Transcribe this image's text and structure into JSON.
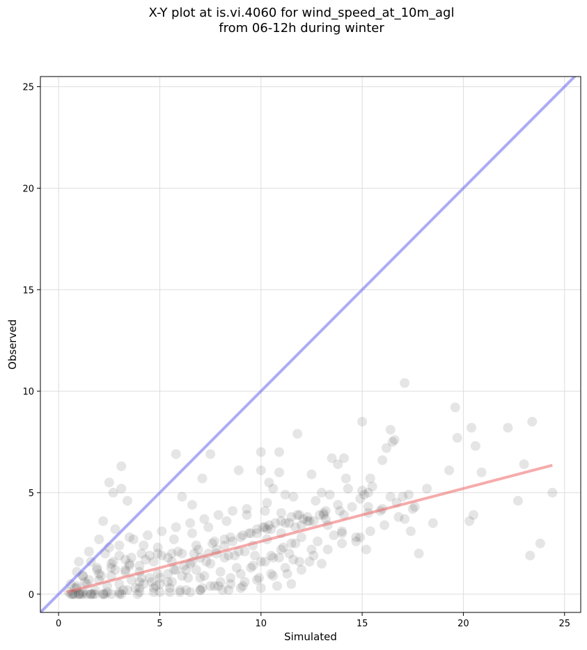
{
  "chart_data": {
    "type": "scatter",
    "title_line1": "X-Y plot at is.vi.4060 for wind_speed_at_10m_agl",
    "title_line2": "from 06-12h during winter",
    "xlabel": "Simulated",
    "ylabel": "Observed",
    "xlim": [
      -0.9,
      25.8
    ],
    "ylim": [
      -0.9,
      25.5
    ],
    "xticks": [
      0,
      5,
      10,
      15,
      20,
      25
    ],
    "yticks": [
      0,
      5,
      10,
      15,
      20,
      25
    ],
    "grid": true,
    "colors": {
      "points": "#000000",
      "one_to_one": "#6666ee",
      "fit": "#ee6666"
    },
    "one_to_one_line": {
      "x": [
        -0.9,
        25.8
      ],
      "y": [
        -0.9,
        25.8
      ]
    },
    "fit_line": {
      "x": [
        0.4,
        24.4
      ],
      "y": [
        0.1,
        6.35
      ]
    },
    "points": {
      "x": [
        17.1,
        19.6,
        16.4,
        15.0,
        19.7,
        22.2,
        20.4,
        23.4,
        11.8,
        16.5,
        16.6,
        16.2,
        10.0,
        10.9,
        20.6,
        5.8,
        7.5,
        3.1,
        15.4,
        13.5,
        14.1,
        14.2,
        16.0,
        23.0,
        12.5,
        10.0,
        13.0,
        8.9,
        2.5,
        3.1,
        6.1,
        7.1,
        10.4,
        10.9,
        17.3,
        16.4,
        15.5,
        19.3,
        20.9,
        13.8,
        24.4,
        15.3,
        22.7,
        10.3,
        6.6,
        2.7,
        3.4,
        14.3,
        15.0,
        18.2,
        15.1,
        18.5,
        20.3,
        20.5,
        17.0,
        17.5,
        11.2,
        10.6,
        13.4,
        11.6,
        14.9,
        12.7,
        13.8,
        16.7,
        17.6,
        23.8,
        15.9,
        15.3,
        16.0,
        15.3,
        17.1,
        17.4,
        14.1,
        13.2,
        12.3,
        11.4,
        10.5,
        9.8,
        9.1,
        8.2,
        7.6,
        6.9,
        6.1,
        5.4,
        4.7,
        4.0,
        3.3,
        2.6,
        2.0,
        1.4,
        0.9,
        0.5,
        17.8,
        23.3,
        12.0,
        10.2,
        14.0,
        14.9,
        13.6,
        12.8,
        11.7,
        11.1,
        9.2,
        8.4,
        7.3,
        6.5,
        5.7,
        4.9,
        4.1,
        3.6,
        3.0,
        2.4,
        1.8,
        1.2,
        0.8,
        13.2,
        12.9,
        12.3,
        11.9,
        11.5,
        11.0,
        10.7,
        10.4,
        10.1,
        9.8,
        9.5,
        9.0,
        8.6,
        8.2,
        7.8,
        7.4,
        7.0,
        6.6,
        6.2,
        5.8,
        5.4,
        5.0,
        4.6,
        4.2,
        3.8,
        3.4,
        3.0,
        2.6,
        2.2,
        1.8,
        1.4,
        1.0,
        0.7,
        12.5,
        11.4,
        10.9,
        10.2,
        9.6,
        8.8,
        8.0,
        7.2,
        6.4,
        5.6,
        4.8,
        4.0,
        3.2,
        2.4,
        1.6,
        1.1,
        0.6,
        14.5,
        13.9,
        13.1,
        12.1,
        11.2,
        10.3,
        9.4,
        8.5,
        7.7,
        6.8,
        5.9,
        5.1,
        4.3,
        3.5,
        2.8,
        2.1,
        1.5,
        0.9,
        12.0,
        11.3,
        10.6,
        9.9,
        9.2,
        8.5,
        7.9,
        7.1,
        6.3,
        5.5,
        4.7,
        3.9,
        3.1,
        2.3,
        1.7,
        1.2,
        0.7,
        15.2,
        14.7,
        14.0,
        13.3,
        12.6,
        11.8,
        11.0,
        10.2,
        9.3,
        8.3,
        7.4,
        6.6,
        5.7,
        4.9,
        4.1,
        3.3,
        2.6,
        2.0,
        1.3,
        0.8,
        11.5,
        10.8,
        10.0,
        9.0,
        8.1,
        7.0,
        6.0,
        5.0,
        4.0,
        3.0,
        2.2,
        1.6,
        1.0,
        13.0,
        12.4,
        11.6,
        10.6,
        9.7,
        8.7,
        7.8,
        6.7,
        5.6,
        4.5,
        3.6,
        2.7,
        1.9,
        1.2,
        0.6,
        9.3,
        8.6,
        7.9,
        7.2,
        6.5,
        5.8,
        5.1,
        4.4,
        3.7,
        3.0,
        2.3,
        1.6,
        0.9,
        2.2,
        2.8,
        3.5,
        4.2,
        4.9,
        5.6,
        6.3,
        7.0,
        7.7,
        8.4,
        9.1,
        9.8,
        10.5,
        11.2,
        11.9,
        12.6,
        13.3,
        14.0,
        14.7,
        15.4,
        16.1,
        16.8,
        1.0,
        1.5,
        2.0,
        2.5,
        3.0,
        3.5,
        4.0,
        4.5,
        5.0,
        5.5,
        6.0,
        6.5,
        7.0,
        7.5,
        8.0,
        8.5,
        9.0,
        9.5,
        10.0,
        10.5,
        11.0,
        11.5,
        12.0,
        1.2,
        1.9,
        2.6,
        3.3,
        4.0,
        4.7,
        5.4,
        6.1,
        6.8,
        7.5,
        8.2,
        8.9,
        9.6,
        10.3,
        11.0,
        11.7,
        12.4,
        13.1
      ],
      "y": [
        10.4,
        9.2,
        8.1,
        8.5,
        7.7,
        8.2,
        8.2,
        8.5,
        7.9,
        7.5,
        7.6,
        7.2,
        7.0,
        7.0,
        7.3,
        6.9,
        6.9,
        6.3,
        5.7,
        6.7,
        6.7,
        5.7,
        6.6,
        6.4,
        5.9,
        6.1,
        5.0,
        6.1,
        5.5,
        5.2,
        4.8,
        5.7,
        5.5,
        6.0,
        4.9,
        4.8,
        5.3,
        6.1,
        6.0,
        6.4,
        5.0,
        5.0,
        4.6,
        4.5,
        4.4,
        5.0,
        4.6,
        5.2,
        5.1,
        5.2,
        4.9,
        3.5,
        3.6,
        3.9,
        4.8,
        4.2,
        4.9,
        5.2,
        4.9,
        4.8,
        4.7,
        4.6,
        4.4,
        4.5,
        4.3,
        2.5,
        4.1,
        4.0,
        4.2,
        4.3,
        3.7,
        3.1,
        3.9,
        3.7,
        3.6,
        3.5,
        3.2,
        3.0,
        2.9,
        2.7,
        2.5,
        2.2,
        2.0,
        1.8,
        1.6,
        1.4,
        1.2,
        0.9,
        0.7,
        0.5,
        0.3,
        0.1,
        2.0,
        1.9,
        3.4,
        3.3,
        3.0,
        2.8,
        2.9,
        2.6,
        2.5,
        2.3,
        2.1,
        1.9,
        1.6,
        1.5,
        1.2,
        1.0,
        0.8,
        0.7,
        0.5,
        0.4,
        0.2,
        0.1,
        0.0,
        4.1,
        3.9,
        3.8,
        3.9,
        3.8,
        3.6,
        3.5,
        3.4,
        3.3,
        3.2,
        3.0,
        2.8,
        2.6,
        2.4,
        2.2,
        2.0,
        1.8,
        1.6,
        1.4,
        1.2,
        1.0,
        0.8,
        0.6,
        0.5,
        0.3,
        0.2,
        0.1,
        0.0,
        0.0,
        0.0,
        0.0,
        0.0,
        0.0,
        2.2,
        2.0,
        1.8,
        1.6,
        1.4,
        1.3,
        1.1,
        0.9,
        0.8,
        0.6,
        0.4,
        0.3,
        0.2,
        0.1,
        0.0,
        0.0,
        0.0,
        4.3,
        4.1,
        4.0,
        3.7,
        3.5,
        3.2,
        3.0,
        2.8,
        2.6,
        2.4,
        2.1,
        1.9,
        1.7,
        1.4,
        1.2,
        0.9,
        0.7,
        0.4,
        1.2,
        1.0,
        0.9,
        0.8,
        0.6,
        0.5,
        0.4,
        0.3,
        0.2,
        0.1,
        0.1,
        0.0,
        0.0,
        0.0,
        0.0,
        0.0,
        0.0,
        2.2,
        2.6,
        3.1,
        3.4,
        3.6,
        3.9,
        4.0,
        4.1,
        3.9,
        3.6,
        3.3,
        3.0,
        2.7,
        2.3,
        2.0,
        1.7,
        1.3,
        1.0,
        0.6,
        0.3,
        0.5,
        0.4,
        0.3,
        0.3,
        0.2,
        0.2,
        0.1,
        0.1,
        0.1,
        0.0,
        0.0,
        0.0,
        0.0,
        1.5,
        1.6,
        1.7,
        1.8,
        1.9,
        1.9,
        2.0,
        2.0,
        2.0,
        1.9,
        1.8,
        1.6,
        1.3,
        0.9,
        0.5,
        4.2,
        4.1,
        3.9,
        3.7,
        3.5,
        3.3,
        3.1,
        2.9,
        2.7,
        2.4,
        2.0,
        1.6,
        1.1,
        3.6,
        3.2,
        2.8,
        2.4,
        2.0,
        1.6,
        1.2,
        0.8,
        0.4,
        0.2,
        0.4,
        0.7,
        1.0,
        1.3,
        1.6,
        1.9,
        2.2,
        2.5,
        2.8,
        3.1,
        3.4,
        3.8,
        1.6,
        2.1,
        2.7,
        2.3,
        1.9,
        1.5,
        1.1,
        0.8,
        0.5,
        0.3,
        0.2,
        0.1,
        0.2,
        0.4,
        0.6,
        0.8,
        1.0,
        1.3,
        1.6,
        1.9,
        2.2,
        2.5,
        2.8,
        0.9,
        1.2,
        1.5,
        1.1,
        0.6,
        0.3,
        0.6,
        0.9,
        1.2,
        1.5,
        1.8,
        2.1,
        2.4,
        2.7,
        3.0,
        3.3,
        3.6,
        3.9
      ]
    }
  }
}
